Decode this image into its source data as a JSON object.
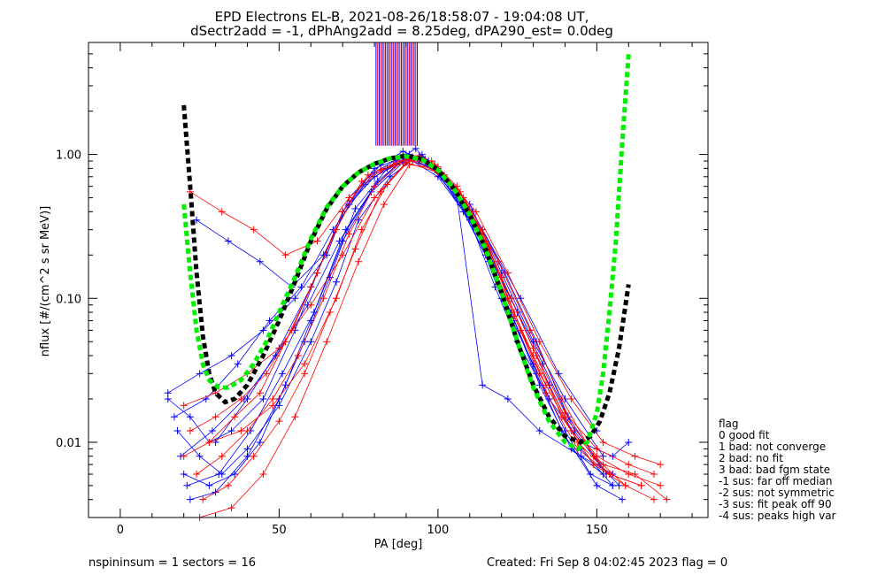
{
  "chart_data": {
    "type": "line",
    "title": "EPD Electrons EL-B, 2021-08-26/18:58:07 - 19:04:08 UT,",
    "subtitle": "dSectr2add = -1, dPhAng2add = 8.25deg, dPA290_est=   0.0deg",
    "xlabel": "PA [deg]",
    "ylabel": "nflux [#/(cm^2 s sr MeV)]",
    "xlim": [
      -10,
      185
    ],
    "ylim": [
      0.003,
      6
    ],
    "yscale": "log",
    "x_ticks": [
      0,
      50,
      100,
      150
    ],
    "y_ticks": [
      0.01,
      0.1,
      1.0
    ],
    "y_tick_labels": [
      "0.01",
      "0.10",
      "1.00"
    ],
    "series_colors": {
      "spin_a": "#0000ff",
      "spin_b": "#ff0000"
    },
    "series": [
      {
        "color": "#0000ff",
        "x": [
          15,
          22,
          28,
          35,
          45,
          55,
          62,
          70,
          80,
          88,
          92,
          100,
          110,
          118,
          125,
          135,
          145,
          155,
          160
        ],
        "y": [
          0.02,
          0.015,
          0.01,
          0.012,
          0.02,
          0.06,
          0.15,
          0.4,
          0.75,
          0.95,
          0.9,
          0.7,
          0.35,
          0.12,
          0.05,
          0.02,
          0.01,
          0.008,
          0.01
        ]
      },
      {
        "color": "#0000ff",
        "x": [
          18,
          25,
          32,
          40,
          50,
          60,
          68,
          75,
          85,
          92,
          98,
          105,
          112,
          120,
          130,
          140,
          148,
          155
        ],
        "y": [
          0.012,
          0.008,
          0.006,
          0.009,
          0.018,
          0.05,
          0.13,
          0.35,
          0.7,
          0.92,
          0.85,
          0.6,
          0.3,
          0.1,
          0.035,
          0.012,
          0.006,
          0.005
        ]
      },
      {
        "color": "#0000ff",
        "x": [
          20,
          28,
          36,
          44,
          52,
          60,
          70,
          80,
          90,
          100,
          108,
          116,
          124,
          132,
          142,
          152
        ],
        "y": [
          0.006,
          0.005,
          0.006,
          0.01,
          0.025,
          0.07,
          0.25,
          0.6,
          0.98,
          0.75,
          0.4,
          0.18,
          0.07,
          0.025,
          0.009,
          0.006
        ]
      },
      {
        "color": "#0000ff",
        "x": [
          22,
          30,
          40,
          50,
          58,
          66,
          74,
          84,
          91,
          99,
          107,
          115,
          123,
          131,
          139,
          150,
          158
        ],
        "y": [
          0.004,
          0.0045,
          0.008,
          0.02,
          0.05,
          0.14,
          0.42,
          0.8,
          0.95,
          0.78,
          0.45,
          0.2,
          0.08,
          0.03,
          0.012,
          0.005,
          0.004
        ]
      },
      {
        "color": "#0000ff",
        "x": [
          15,
          25,
          35,
          45,
          55,
          65,
          72,
          82,
          89,
          96,
          104,
          114,
          126,
          138,
          150
        ],
        "y": [
          0.022,
          0.03,
          0.04,
          0.06,
          0.1,
          0.2,
          0.5,
          0.85,
          1.05,
          0.88,
          0.6,
          0.3,
          0.1,
          0.03,
          0.012
        ]
      },
      {
        "color": "#0000ff",
        "x": [
          24,
          34,
          44,
          54,
          64,
          72,
          80,
          90,
          100,
          110,
          120,
          130,
          140,
          152
        ],
        "y": [
          0.35,
          0.25,
          0.18,
          0.12,
          0.2,
          0.45,
          0.7,
          0.92,
          0.8,
          0.45,
          0.15,
          0.05,
          0.02,
          0.008
        ]
      },
      {
        "color": "#0000ff",
        "x": [
          17,
          27,
          37,
          47,
          57,
          67,
          77,
          87,
          93,
          101,
          111,
          121,
          131,
          141,
          151,
          157
        ],
        "y": [
          0.015,
          0.02,
          0.035,
          0.07,
          0.12,
          0.3,
          0.62,
          0.9,
          1.1,
          0.7,
          0.4,
          0.15,
          0.05,
          0.015,
          0.007,
          0.005
        ]
      },
      {
        "color": "#0000ff",
        "x": [
          19,
          29,
          39,
          49,
          59,
          69,
          79,
          89,
          95,
          103,
          113,
          123,
          133,
          143,
          153
        ],
        "y": [
          0.008,
          0.012,
          0.02,
          0.04,
          0.09,
          0.25,
          0.55,
          0.88,
          1.0,
          0.65,
          0.28,
          0.1,
          0.035,
          0.012,
          0.006
        ]
      },
      {
        "color": "#0000ff",
        "x": [
          21,
          31,
          41,
          51,
          61,
          71,
          81,
          91,
          97,
          105,
          115,
          125,
          135,
          145,
          155
        ],
        "y": [
          0.005,
          0.006,
          0.012,
          0.03,
          0.08,
          0.3,
          0.65,
          1.0,
          0.9,
          0.55,
          0.22,
          0.08,
          0.025,
          0.009,
          0.005
        ]
      },
      {
        "color": "#0000ff",
        "x": [
          30,
          40,
          50,
          60,
          70,
          80,
          90,
          96,
          106,
          114,
          122,
          132,
          145,
          155
        ],
        "y": [
          0.01,
          0.02,
          0.045,
          0.12,
          0.4,
          0.8,
          0.98,
          0.92,
          0.5,
          0.025,
          0.02,
          0.012,
          0.008,
          0.006
        ]
      },
      {
        "color": "#ff0000",
        "x": [
          20,
          28,
          36,
          44,
          52,
          60,
          68,
          76,
          86,
          92,
          98,
          106,
          114,
          122,
          130,
          140,
          150,
          160,
          170
        ],
        "y": [
          0.008,
          0.01,
          0.015,
          0.022,
          0.05,
          0.12,
          0.3,
          0.65,
          0.85,
          0.95,
          0.9,
          0.6,
          0.3,
          0.1,
          0.04,
          0.015,
          0.008,
          0.006,
          0.005
        ]
      },
      {
        "color": "#ff0000",
        "x": [
          22,
          30,
          38,
          46,
          54,
          62,
          70,
          78,
          88,
          94,
          100,
          108,
          116,
          124,
          132,
          142,
          152,
          162,
          172
        ],
        "y": [
          0.012,
          0.015,
          0.02,
          0.03,
          0.06,
          0.15,
          0.4,
          0.72,
          0.9,
          0.98,
          0.82,
          0.5,
          0.22,
          0.08,
          0.03,
          0.012,
          0.007,
          0.006,
          0.004
        ]
      },
      {
        "color": "#ff0000",
        "x": [
          24,
          32,
          40,
          48,
          56,
          64,
          72,
          80,
          90,
          96,
          102,
          110,
          118,
          126,
          134,
          144,
          154,
          164
        ],
        "y": [
          0.006,
          0.008,
          0.012,
          0.02,
          0.04,
          0.1,
          0.28,
          0.6,
          0.95,
          0.9,
          0.7,
          0.38,
          0.15,
          0.06,
          0.022,
          0.009,
          0.006,
          0.005
        ]
      },
      {
        "color": "#ff0000",
        "x": [
          26,
          34,
          42,
          50,
          58,
          66,
          74,
          82,
          91,
          99,
          107,
          115,
          123,
          131,
          139,
          149,
          159,
          168
        ],
        "y": [
          0.004,
          0.005,
          0.008,
          0.014,
          0.03,
          0.08,
          0.22,
          0.55,
          0.92,
          0.85,
          0.55,
          0.25,
          0.1,
          0.04,
          0.015,
          0.007,
          0.005,
          0.004
        ]
      },
      {
        "color": "#ff0000",
        "x": [
          22,
          32,
          42,
          52,
          62,
          72,
          82,
          92,
          102,
          112,
          122,
          132,
          142,
          152,
          162,
          170
        ],
        "y": [
          0.55,
          0.4,
          0.3,
          0.2,
          0.25,
          0.5,
          0.78,
          0.9,
          0.72,
          0.4,
          0.15,
          0.05,
          0.02,
          0.01,
          0.008,
          0.007
        ]
      },
      {
        "color": "#ff0000",
        "x": [
          20,
          30,
          40,
          50,
          60,
          70,
          80,
          90,
          100,
          110,
          120,
          130,
          140,
          150,
          160,
          168
        ],
        "y": [
          0.018,
          0.022,
          0.03,
          0.045,
          0.09,
          0.2,
          0.5,
          0.88,
          0.75,
          0.4,
          0.14,
          0.045,
          0.016,
          0.009,
          0.007,
          0.006
        ]
      },
      {
        "color": "#ff0000",
        "x": [
          25,
          35,
          45,
          55,
          65,
          75,
          83,
          91,
          99,
          109,
          119,
          129,
          139,
          149,
          159
        ],
        "y": [
          0.003,
          0.0035,
          0.006,
          0.015,
          0.05,
          0.18,
          0.45,
          0.85,
          0.8,
          0.45,
          0.18,
          0.06,
          0.02,
          0.008,
          0.005
        ]
      },
      {
        "color": "#ff0000",
        "x": [
          28,
          38,
          48,
          58,
          68,
          76,
          84,
          92,
          100,
          108,
          116,
          124,
          134,
          144,
          154,
          164
        ],
        "y": [
          0.01,
          0.012,
          0.018,
          0.035,
          0.1,
          0.3,
          0.62,
          0.96,
          0.78,
          0.46,
          0.2,
          0.075,
          0.025,
          0.01,
          0.006,
          0.005
        ]
      }
    ],
    "fit_curves": [
      {
        "name": "fit-black",
        "color": "#000000",
        "x": [
          20,
          22,
          24,
          26,
          28,
          30,
          33,
          36,
          40,
          45,
          50,
          55,
          60,
          65,
          70,
          75,
          80,
          85,
          90,
          95,
          100,
          105,
          110,
          115,
          120,
          125,
          130,
          135,
          140,
          145,
          148,
          151,
          154,
          157,
          160
        ],
        "y": [
          2.2,
          0.6,
          0.15,
          0.055,
          0.03,
          0.022,
          0.019,
          0.02,
          0.025,
          0.04,
          0.07,
          0.13,
          0.25,
          0.42,
          0.6,
          0.75,
          0.86,
          0.94,
          0.98,
          0.93,
          0.78,
          0.58,
          0.38,
          0.22,
          0.11,
          0.05,
          0.025,
          0.015,
          0.011,
          0.01,
          0.011,
          0.014,
          0.022,
          0.045,
          0.125
        ]
      },
      {
        "name": "fit-green",
        "color": "#00ee00",
        "x": [
          20,
          22,
          24,
          26,
          28,
          31,
          34,
          38,
          42,
          46,
          50,
          55,
          60,
          65,
          70,
          75,
          80,
          85,
          90,
          95,
          100,
          105,
          110,
          115,
          120,
          125,
          130,
          135,
          140,
          144,
          147,
          150,
          152,
          154,
          156,
          158,
          160
        ],
        "y": [
          0.45,
          0.15,
          0.06,
          0.035,
          0.027,
          0.024,
          0.024,
          0.027,
          0.035,
          0.05,
          0.08,
          0.14,
          0.26,
          0.43,
          0.6,
          0.75,
          0.86,
          0.94,
          0.97,
          0.92,
          0.78,
          0.58,
          0.38,
          0.22,
          0.11,
          0.05,
          0.024,
          0.014,
          0.01,
          0.009,
          0.01,
          0.016,
          0.03,
          0.08,
          0.25,
          1.2,
          5.0
        ]
      }
    ],
    "vertical_lines_x": [
      80.5,
      81,
      81.5,
      82,
      82.5,
      83,
      83.5,
      84,
      84.5,
      85,
      85.5,
      86,
      86.5,
      87,
      87.5,
      88,
      88.5,
      89,
      89.5,
      90,
      90.5,
      91,
      91.5,
      92,
      92.5,
      93,
      93.5
    ],
    "legend": {
      "placement": "right",
      "title": "flag",
      "entries": [
        " 0 good fit",
        " 1 bad: not converge",
        " 2 bad: no fit",
        " 3 bad: bad fgm state",
        "-1 sus: far off median",
        "-2 sus: not symmetric",
        "-3 sus: fit peak off 90",
        "-4 sus: peaks high var"
      ]
    }
  },
  "footer": {
    "left": "nspininsum =  1  sectors = 16",
    "right": "Created: Fri Sep  8 04:02:45 2023   flag = 0"
  }
}
